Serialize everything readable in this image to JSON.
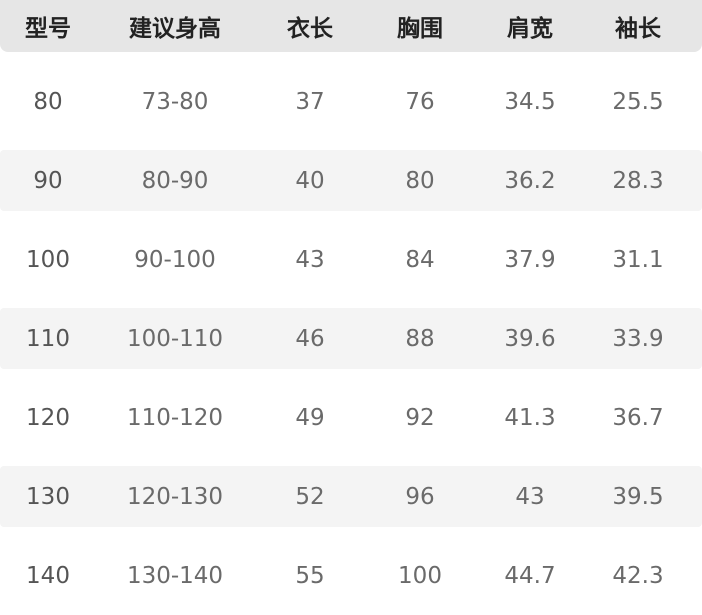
{
  "headers": [
    "型号",
    "建议身高",
    "衣长",
    "胸围",
    "肩宽",
    "袖长"
  ],
  "rows": [
    [
      "80",
      "73-80",
      "37",
      "76",
      "34.5",
      "25.5"
    ],
    [
      "90",
      "80-90",
      "40",
      "80",
      "36.2",
      "28.3"
    ],
    [
      "100",
      "90-100",
      "43",
      "84",
      "37.9",
      "31.1"
    ],
    [
      "110",
      "100-110",
      "46",
      "88",
      "39.6",
      "33.9"
    ],
    [
      "120",
      "110-120",
      "49",
      "92",
      "41.3",
      "36.7"
    ],
    [
      "130",
      "120-130",
      "52",
      "96",
      "43",
      "39.5"
    ],
    [
      "140",
      "130-140",
      "55",
      "100",
      "44.7",
      "42.3"
    ]
  ],
  "colors": {
    "header_bg": "#e6e6e6",
    "stripe_bg": "#f4f4f4",
    "header_text": "#222222",
    "cell_text": "#6a6a6a"
  }
}
